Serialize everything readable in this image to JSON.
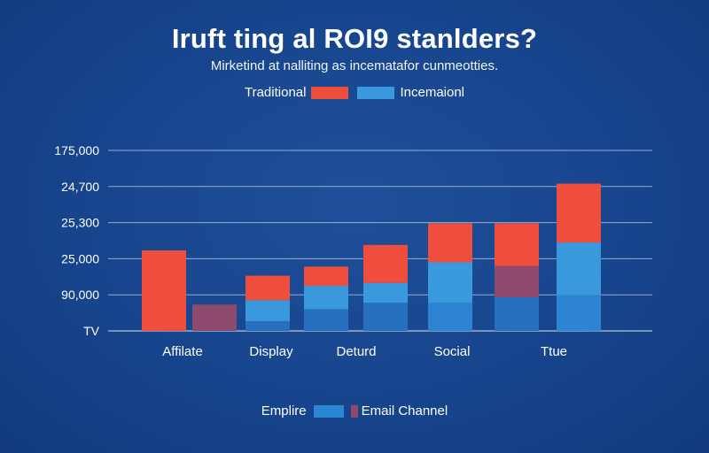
{
  "chart_data": {
    "type": "bar",
    "title": "Iruft ting al ROI9 stanlders?",
    "subtitle": "Mirketind at nalliting as incematafor cunmeotties.",
    "legend_top": [
      {
        "name": "Traditional",
        "color": "#ee4e3b"
      },
      {
        "name": "Incemaionl",
        "color": "#3a98dc"
      }
    ],
    "legend_bottom": [
      {
        "name": "Emplire",
        "color": "#2c86d6"
      },
      {
        "name": "Email Channel",
        "color": "#8e4a6c"
      }
    ],
    "y_tick_labels": [
      "TV",
      "90,000",
      "25,000",
      "25,300",
      "24,700",
      "175,000"
    ],
    "x_tick_labels": [
      "Affilate",
      "Display",
      "Deturd",
      "Social",
      "Ttue"
    ],
    "ylim": [
      0,
      5
    ],
    "grid": true,
    "colors": {
      "traditional": "#ee4e3b",
      "blue_light": "#3a98dc",
      "blue_mid": "#2d84d3",
      "blue_dark": "#2770bf",
      "purple": "#8e4a6c"
    },
    "bars": [
      {
        "x": 185,
        "segments": [
          {
            "from": 0,
            "to": 2.23,
            "color": "traditional"
          }
        ]
      },
      {
        "x": 242,
        "segments": [
          {
            "from": 0,
            "to": 0.73,
            "color": "purple"
          }
        ]
      },
      {
        "x": 302,
        "segments": [
          {
            "from": 0,
            "to": 0.27,
            "color": "blue_dark"
          },
          {
            "from": 0.27,
            "to": 0.85,
            "color": "blue_light"
          },
          {
            "from": 0.85,
            "to": 1.53,
            "color": "traditional"
          }
        ]
      },
      {
        "x": 368,
        "segments": [
          {
            "from": 0,
            "to": 0.6,
            "color": "blue_dark"
          },
          {
            "from": 0.6,
            "to": 1.25,
            "color": "blue_light"
          },
          {
            "from": 1.25,
            "to": 1.78,
            "color": "traditional"
          }
        ]
      },
      {
        "x": 435,
        "segments": [
          {
            "from": 0,
            "to": 0.78,
            "color": "blue_dark"
          },
          {
            "from": 0.78,
            "to": 1.33,
            "color": "blue_light"
          },
          {
            "from": 1.33,
            "to": 2.38,
            "color": "traditional"
          }
        ]
      },
      {
        "x": 508,
        "segments": [
          {
            "from": 0,
            "to": 0.78,
            "color": "blue_mid"
          },
          {
            "from": 0.78,
            "to": 1.9,
            "color": "blue_light"
          },
          {
            "from": 1.9,
            "to": 2.98,
            "color": "traditional"
          }
        ]
      },
      {
        "x": 583,
        "segments": [
          {
            "from": 0,
            "to": 0.93,
            "color": "blue_dark"
          },
          {
            "from": 0.93,
            "to": 1.8,
            "color": "purple"
          },
          {
            "from": 1.8,
            "to": 2.98,
            "color": "traditional"
          }
        ]
      },
      {
        "x": 653,
        "segments": [
          {
            "from": 0,
            "to": 1.0,
            "color": "blue_mid"
          },
          {
            "from": 1.0,
            "to": 2.45,
            "color": "blue_light"
          },
          {
            "from": 2.45,
            "to": 4.08,
            "color": "traditional"
          }
        ]
      }
    ]
  }
}
